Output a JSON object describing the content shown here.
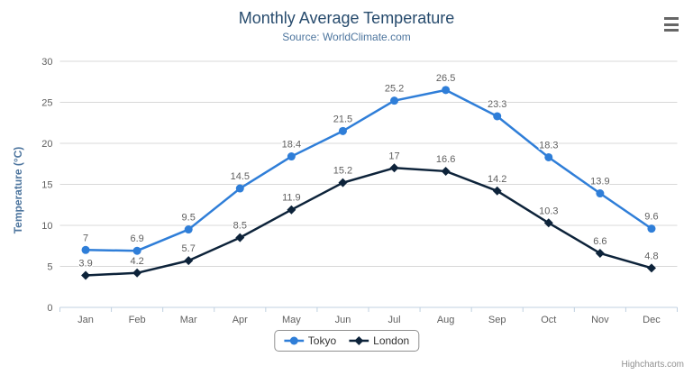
{
  "chart": {
    "title": "Monthly Average Temperature",
    "subtitle": "Source: WorldClimate.com",
    "credits": "Highcharts.com",
    "context_menu_icon": "hamburger-icon"
  },
  "chart_data": {
    "type": "line",
    "title": "Monthly Average Temperature",
    "subtitle": "Source: WorldClimate.com",
    "categories": [
      "Jan",
      "Feb",
      "Mar",
      "Apr",
      "May",
      "Jun",
      "Jul",
      "Aug",
      "Sep",
      "Oct",
      "Nov",
      "Dec"
    ],
    "series": [
      {
        "name": "Tokyo",
        "color": "#2f7ed8",
        "marker": "circle",
        "values": [
          7,
          6.9,
          9.5,
          14.5,
          18.4,
          21.5,
          25.2,
          26.5,
          23.3,
          18.3,
          13.9,
          9.6
        ]
      },
      {
        "name": "London",
        "color": "#0d233a",
        "marker": "diamond",
        "values": [
          3.9,
          4.2,
          5.7,
          8.5,
          11.9,
          15.2,
          17,
          16.6,
          14.2,
          10.3,
          6.6,
          4.8
        ]
      }
    ],
    "xlabel": "",
    "ylabel": "Temperature (°C)",
    "ylim": [
      0,
      30
    ],
    "ytick_interval": 5,
    "grid": true,
    "data_labels": true,
    "legend_position": "bottom-center",
    "colors": {
      "title": "#274b6d",
      "subtitle": "#4d759e",
      "axis_labels": "#606060",
      "axis_line": "#c0d0e0",
      "gridline": "#d8d8d8",
      "data_label": "#606060",
      "legend_border": "#909090",
      "credits": "#909090"
    }
  }
}
